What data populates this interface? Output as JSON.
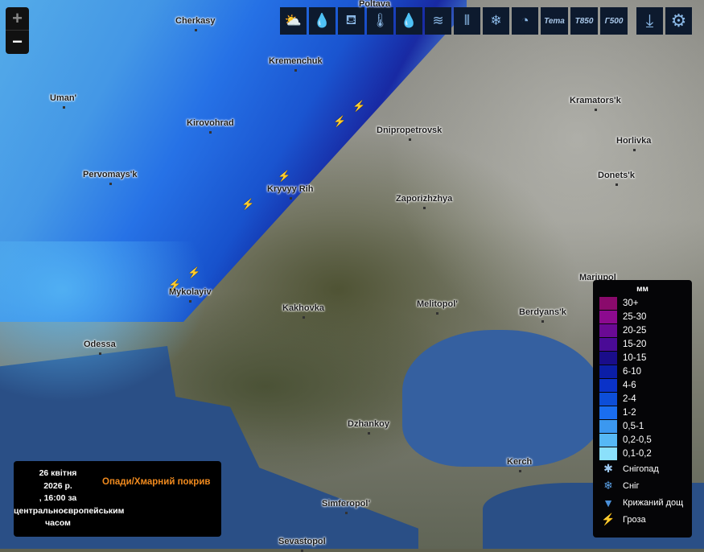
{
  "map": {
    "cities": [
      {
        "name": "Cherkasy"
      },
      {
        "name": "Kremenchuk"
      },
      {
        "name": "Uman'"
      },
      {
        "name": "Kirovohrad"
      },
      {
        "name": "Dnipropetrovsk"
      },
      {
        "name": "Kramators'k"
      },
      {
        "name": "Horlivka"
      },
      {
        "name": "Pervomays'k"
      },
      {
        "name": "Kryvyy Rih"
      },
      {
        "name": "Zaporizhzhya"
      },
      {
        "name": "Donets'k"
      },
      {
        "name": "Mykolayiv"
      },
      {
        "name": "Kakhovka"
      },
      {
        "name": "Melitopol'"
      },
      {
        "name": "Berdyans'k"
      },
      {
        "name": "Mariupol"
      },
      {
        "name": "Odessa"
      },
      {
        "name": "Dzhankoy"
      },
      {
        "name": "Kerch"
      },
      {
        "name": "Simferopol'"
      },
      {
        "name": "Sevastopol"
      },
      {
        "name": "Poltava"
      }
    ]
  },
  "zoom": {
    "in": "+",
    "out": "−"
  },
  "toolbar": [
    {
      "icon": "cloud-rain-sun-icon",
      "glyph": "⛅"
    },
    {
      "icon": "droplets-icon",
      "glyph": "💧"
    },
    {
      "icon": "bucket-icon",
      "glyph": "⛾"
    },
    {
      "icon": "thermometer-icon",
      "glyph": "🌡"
    },
    {
      "icon": "dew-point-icon",
      "glyph": "💧"
    },
    {
      "icon": "wind-icon",
      "glyph": "≋"
    },
    {
      "icon": "wind-gust-icon",
      "glyph": "⫴"
    },
    {
      "icon": "snowflake-icon",
      "glyph": "❄"
    },
    {
      "icon": "pressure-gauge-icon",
      "glyph": "◔"
    },
    {
      "label": "Тета"
    },
    {
      "label": "T850"
    },
    {
      "label": "Г500"
    }
  ],
  "actions": [
    {
      "icon": "download-icon",
      "glyph": "⤓"
    },
    {
      "icon": "gear-icon",
      "glyph": "⚙"
    }
  ],
  "legend": {
    "unit": "мм",
    "items": [
      {
        "label": "30+",
        "color": "#8a0a6c"
      },
      {
        "label": "25-30",
        "color": "#8c0a8f"
      },
      {
        "label": "20-25",
        "color": "#6a0a94"
      },
      {
        "label": "15-20",
        "color": "#4a0b96"
      },
      {
        "label": "10-15",
        "color": "#1a0d8a"
      },
      {
        "label": "6-10",
        "color": "#0b1ea6"
      },
      {
        "label": "4-6",
        "color": "#0a32c8"
      },
      {
        "label": "2-4",
        "color": "#0d4ed8"
      },
      {
        "label": "1-2",
        "color": "#1a6ef0"
      },
      {
        "label": "0,5-1",
        "color": "#3b98f0"
      },
      {
        "label": "0,2-0,5",
        "color": "#56b8f5"
      },
      {
        "label": "0,1-0,2",
        "color": "#8be0fb"
      }
    ],
    "types": [
      {
        "label": "Снігопад",
        "icon": "snowflake-icon",
        "glyph": "✱",
        "color": "#9cc8f0"
      },
      {
        "label": "Сніг",
        "icon": "snow-icon",
        "glyph": "❄",
        "color": "#5aa0e6"
      },
      {
        "label": "Крижаний дощ",
        "icon": "freezing-rain-icon",
        "glyph": "▼",
        "color": "#4a8fd8"
      },
      {
        "label": "Гроза",
        "icon": "lightning-icon",
        "glyph": "⚡",
        "color": "#f5b70a"
      }
    ]
  },
  "info": {
    "date_lines": [
      "26 квітня",
      "2026 р.",
      ", 16:00 за",
      "центральноєвропейським",
      "часом"
    ],
    "title": "Опади/Хмарний покрив"
  }
}
